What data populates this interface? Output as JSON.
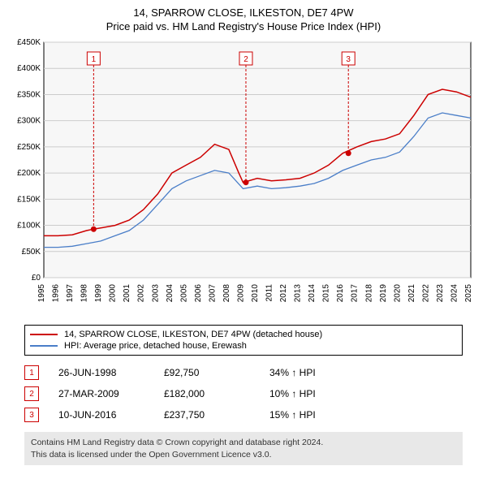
{
  "title": {
    "line1": "14, SPARROW CLOSE, ILKESTON, DE7 4PW",
    "line2": "Price paid vs. HM Land Registry's House Price Index (HPI)"
  },
  "chart": {
    "type": "line",
    "background_color": "#ffffff",
    "plot_background_color": "#f7f7f7",
    "grid_color": "#cccccc",
    "axis_color": "#000000",
    "label_fontsize": 10,
    "ylim": [
      0,
      450000
    ],
    "ytick_step": 50000,
    "yticks": [
      "£0",
      "£50K",
      "£100K",
      "£150K",
      "£200K",
      "£250K",
      "£300K",
      "£350K",
      "£400K",
      "£450K"
    ],
    "xlim": [
      1995,
      2025
    ],
    "xticks": [
      1995,
      1996,
      1997,
      1998,
      1999,
      2000,
      2001,
      2002,
      2003,
      2004,
      2005,
      2006,
      2007,
      2008,
      2009,
      2010,
      2011,
      2012,
      2013,
      2014,
      2015,
      2016,
      2017,
      2018,
      2019,
      2020,
      2021,
      2022,
      2023,
      2024,
      2025
    ],
    "series": [
      {
        "name": "14, SPARROW CLOSE, ILKESTON, DE7 4PW (detached house)",
        "color": "#cc0000",
        "line_width": 1.5,
        "data": [
          [
            1995,
            80000
          ],
          [
            1996,
            80000
          ],
          [
            1997,
            82000
          ],
          [
            1998,
            90000
          ],
          [
            1998.5,
            92750
          ],
          [
            1999,
            95000
          ],
          [
            2000,
            100000
          ],
          [
            2001,
            110000
          ],
          [
            2002,
            130000
          ],
          [
            2003,
            160000
          ],
          [
            2004,
            200000
          ],
          [
            2005,
            215000
          ],
          [
            2006,
            230000
          ],
          [
            2007,
            255000
          ],
          [
            2008,
            245000
          ],
          [
            2008.7,
            200000
          ],
          [
            2009,
            182000
          ],
          [
            2010,
            190000
          ],
          [
            2011,
            185000
          ],
          [
            2012,
            187000
          ],
          [
            2013,
            190000
          ],
          [
            2014,
            200000
          ],
          [
            2015,
            215000
          ],
          [
            2016,
            237750
          ],
          [
            2017,
            250000
          ],
          [
            2018,
            260000
          ],
          [
            2019,
            265000
          ],
          [
            2020,
            275000
          ],
          [
            2021,
            310000
          ],
          [
            2022,
            350000
          ],
          [
            2023,
            360000
          ],
          [
            2024,
            355000
          ],
          [
            2025,
            345000
          ]
        ]
      },
      {
        "name": "HPI: Average price, detached house, Erewash",
        "color": "#4a7ec8",
        "line_width": 1.3,
        "data": [
          [
            1995,
            58000
          ],
          [
            1996,
            58000
          ],
          [
            1997,
            60000
          ],
          [
            1998,
            65000
          ],
          [
            1999,
            70000
          ],
          [
            2000,
            80000
          ],
          [
            2001,
            90000
          ],
          [
            2002,
            110000
          ],
          [
            2003,
            140000
          ],
          [
            2004,
            170000
          ],
          [
            2005,
            185000
          ],
          [
            2006,
            195000
          ],
          [
            2007,
            205000
          ],
          [
            2008,
            200000
          ],
          [
            2009,
            170000
          ],
          [
            2010,
            175000
          ],
          [
            2011,
            170000
          ],
          [
            2012,
            172000
          ],
          [
            2013,
            175000
          ],
          [
            2014,
            180000
          ],
          [
            2015,
            190000
          ],
          [
            2016,
            205000
          ],
          [
            2017,
            215000
          ],
          [
            2018,
            225000
          ],
          [
            2019,
            230000
          ],
          [
            2020,
            240000
          ],
          [
            2021,
            270000
          ],
          [
            2022,
            305000
          ],
          [
            2023,
            315000
          ],
          [
            2024,
            310000
          ],
          [
            2025,
            305000
          ]
        ]
      }
    ],
    "markers": [
      {
        "n": "1",
        "year": 1998.5,
        "price": 92750
      },
      {
        "n": "2",
        "year": 2009.2,
        "price": 182000
      },
      {
        "n": "3",
        "year": 2016.4,
        "price": 237750
      }
    ],
    "marker_style": {
      "box_stroke": "#cc0000",
      "box_fill": "#ffffff",
      "text_color": "#cc0000",
      "dash": "3,2",
      "point_fill": "#cc0000",
      "point_radius": 3.5
    }
  },
  "legend": {
    "items": [
      {
        "color": "#cc0000",
        "label": "14, SPARROW CLOSE, ILKESTON, DE7 4PW (detached house)"
      },
      {
        "color": "#4a7ec8",
        "label": "HPI: Average price, detached house, Erewash"
      }
    ]
  },
  "transactions": [
    {
      "n": "1",
      "date": "26-JUN-1998",
      "price": "£92,750",
      "diff": "34% ↑ HPI"
    },
    {
      "n": "2",
      "date": "27-MAR-2009",
      "price": "£182,000",
      "diff": "10% ↑ HPI"
    },
    {
      "n": "3",
      "date": "10-JUN-2016",
      "price": "£237,750",
      "diff": "15% ↑ HPI"
    }
  ],
  "footer": {
    "line1": "Contains HM Land Registry data © Crown copyright and database right 2024.",
    "line2": "This data is licensed under the Open Government Licence v3.0."
  }
}
